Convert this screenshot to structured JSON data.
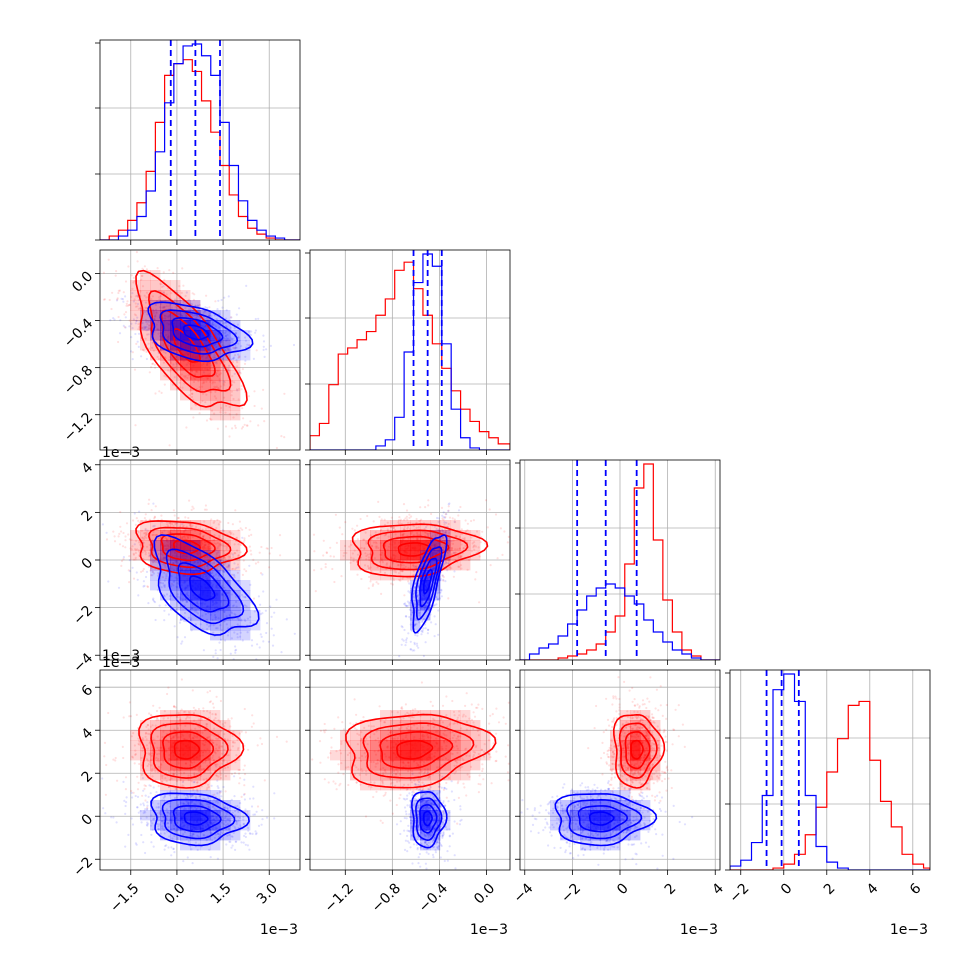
{
  "chart_data": {
    "type": "corner",
    "grid": true,
    "colors": {
      "blue": "#0000ff",
      "red": "#ff0000"
    },
    "series": [
      {
        "color": "#0000ff",
        "fill": "#8f8fff"
      },
      {
        "color": "#ff0000",
        "fill": "#ff9a9a"
      }
    ],
    "params": [
      {
        "range": [
          -2.5,
          4.0
        ],
        "ticks": [
          -1.5,
          0.0,
          1.5,
          3.0
        ],
        "tick_labels": [
          "−1.5",
          "0.0",
          "1.5",
          "3.0"
        ],
        "offset": "1e−3"
      },
      {
        "range": [
          -1.5,
          0.2
        ],
        "ticks": [
          -1.2,
          -0.8,
          -0.4,
          0.0
        ],
        "tick_labels": [
          "−1.2",
          "−0.8",
          "−0.4",
          "0.0"
        ],
        "offset": "1e−3"
      },
      {
        "range": [
          -4.2,
          4.2
        ],
        "ticks": [
          -4,
          -2,
          0,
          2,
          4
        ],
        "tick_labels": [
          "−4",
          "−2",
          "0",
          "2",
          "4"
        ],
        "offset": "1e−3"
      },
      {
        "range": [
          -2.5,
          6.8
        ],
        "ticks": [
          -2,
          0,
          2,
          4,
          6
        ],
        "tick_labels": [
          "−2",
          "0",
          "2",
          "4",
          "6"
        ],
        "offset": "1e−3"
      }
    ],
    "quantile_lines": [
      [
        -0.2,
        0.6,
        1.4
      ],
      [
        -0.62,
        -0.5,
        -0.38
      ],
      [
        -1.8,
        -0.6,
        0.7
      ],
      [
        -0.8,
        -0.1,
        0.7
      ]
    ],
    "histograms": [
      {
        "bins": [
          -2.5,
          -2.2,
          -1.9,
          -1.6,
          -1.3,
          -1.0,
          -0.7,
          -0.4,
          -0.1,
          0.2,
          0.5,
          0.8,
          1.1,
          1.4,
          1.7,
          2.0,
          2.3,
          2.6,
          2.9,
          3.2,
          3.5,
          4.0
        ],
        "blue": [
          0,
          0,
          2,
          5,
          12,
          25,
          45,
          70,
          90,
          99,
          100,
          94,
          84,
          60,
          38,
          20,
          10,
          5,
          2,
          1,
          0
        ],
        "red": [
          0,
          2,
          5,
          10,
          19,
          35,
          60,
          84,
          90,
          92,
          86,
          71,
          55,
          38,
          23,
          12,
          6,
          3,
          1,
          0,
          0
        ]
      },
      {
        "bins": [
          -1.5,
          -1.42,
          -1.34,
          -1.26,
          -1.18,
          -1.1,
          -1.02,
          -0.94,
          -0.86,
          -0.78,
          -0.7,
          -0.62,
          -0.54,
          -0.46,
          -0.38,
          -0.3,
          -0.22,
          -0.14,
          -0.06,
          0.02,
          0.1,
          0.2
        ],
        "blue": [
          0,
          0,
          0,
          0,
          0,
          0,
          0,
          2,
          5,
          16,
          48,
          82,
          96,
          90,
          52,
          20,
          6,
          1,
          0,
          0,
          0
        ],
        "red": [
          7,
          13,
          32,
          47,
          50,
          54,
          58,
          66,
          74,
          88,
          92,
          79,
          66,
          52,
          40,
          29,
          20,
          14,
          9,
          6,
          3
        ]
      },
      {
        "bins": [
          -4.2,
          -3.8,
          -3.4,
          -3.0,
          -2.6,
          -2.2,
          -1.8,
          -1.4,
          -1.0,
          -0.6,
          -0.2,
          0.2,
          0.6,
          1.0,
          1.4,
          1.8,
          2.2,
          2.6,
          3.0,
          3.4,
          3.8,
          4.2
        ],
        "blue": [
          0,
          3,
          6,
          8,
          12,
          18,
          25,
          32,
          36,
          38,
          36,
          32,
          28,
          20,
          14,
          9,
          5,
          3,
          1,
          0,
          0
        ],
        "red": [
          0,
          0,
          0,
          0,
          1,
          2,
          3,
          5,
          8,
          14,
          22,
          48,
          86,
          98,
          60,
          30,
          14,
          5,
          2,
          0,
          0
        ]
      },
      {
        "bins": [
          -2.5,
          -2.0,
          -1.5,
          -1.0,
          -0.5,
          0.0,
          0.5,
          1.0,
          1.5,
          2.0,
          2.5,
          3.0,
          3.5,
          4.0,
          4.5,
          5.0,
          5.5,
          6.0,
          6.5,
          6.8
        ],
        "blue": [
          2,
          5,
          14,
          38,
          92,
          100,
          86,
          38,
          12,
          4,
          1,
          0,
          0,
          0,
          0,
          0,
          0,
          0,
          0
        ],
        "red": [
          0,
          0,
          0,
          0,
          1,
          3,
          8,
          18,
          32,
          50,
          67,
          84,
          86,
          56,
          35,
          22,
          8,
          3,
          1
        ]
      }
    ],
    "joint": [
      {
        "x": 0,
        "y": 1,
        "blue": {
          "mean": [
            0.6,
            -0.5
          ],
          "sd": [
            0.8,
            0.12
          ],
          "corr": -0.35
        },
        "red": {
          "mean": [
            0.3,
            -0.62
          ],
          "sd": [
            0.85,
            0.28
          ],
          "corr": -0.7
        }
      },
      {
        "x": 0,
        "y": 2,
        "blue": {
          "mean": [
            0.8,
            -1.2
          ],
          "sd": [
            0.8,
            1.0
          ],
          "corr": -0.55
        },
        "red": {
          "mean": [
            0.3,
            0.55
          ],
          "sd": [
            0.85,
            0.55
          ],
          "corr": -0.15
        }
      },
      {
        "x": 1,
        "y": 2,
        "blue": {
          "mean": [
            -0.5,
            -0.9
          ],
          "sd": [
            0.07,
            1.0
          ],
          "corr": 0.7
        },
        "red": {
          "mean": [
            -0.62,
            0.45
          ],
          "sd": [
            0.27,
            0.55
          ],
          "corr": 0.1
        }
      },
      {
        "x": 0,
        "y": 3,
        "blue": {
          "mean": [
            0.6,
            -0.1
          ],
          "sd": [
            0.75,
            0.6
          ],
          "corr": -0.1
        },
        "red": {
          "mean": [
            0.3,
            3.1
          ],
          "sd": [
            0.8,
            0.85
          ],
          "corr": 0.0
        }
      },
      {
        "x": 1,
        "y": 3,
        "blue": {
          "mean": [
            -0.5,
            -0.1
          ],
          "sd": [
            0.07,
            0.65
          ],
          "corr": 0.0
        },
        "red": {
          "mean": [
            -0.62,
            3.1
          ],
          "sd": [
            0.3,
            0.85
          ],
          "corr": 0.15
        }
      },
      {
        "x": 2,
        "y": 3,
        "blue": {
          "mean": [
            -0.8,
            -0.1
          ],
          "sd": [
            1.0,
            0.6
          ],
          "corr": 0.0
        },
        "red": {
          "mean": [
            0.7,
            3.1
          ],
          "sd": [
            0.5,
            0.85
          ],
          "corr": 0.0
        }
      }
    ]
  }
}
